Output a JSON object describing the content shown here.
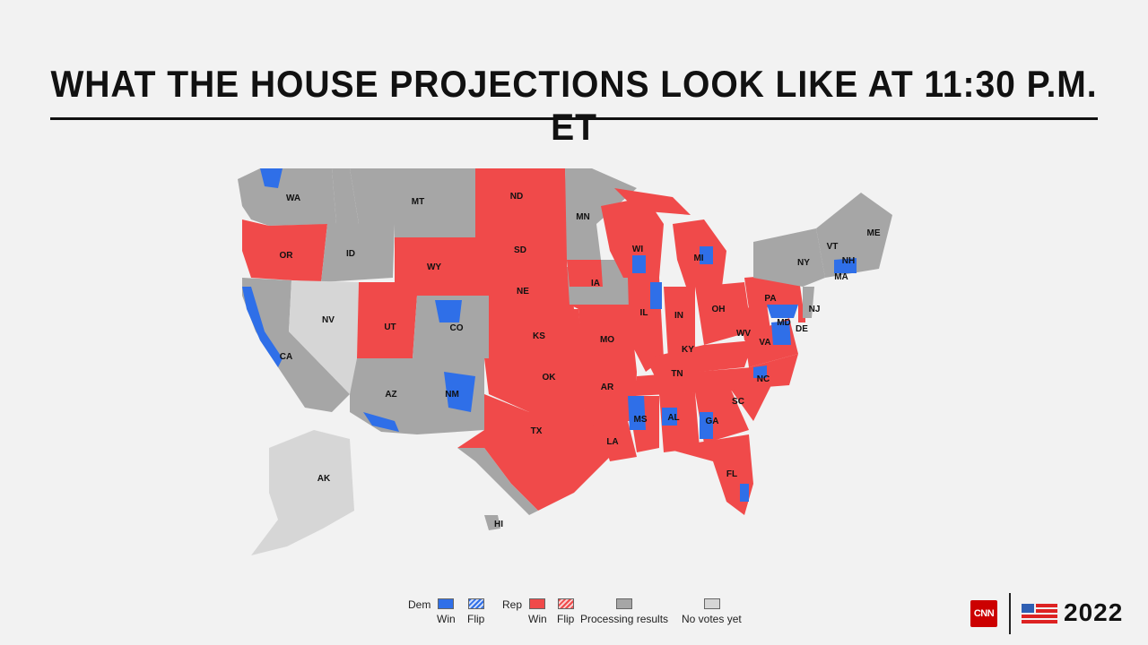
{
  "title": "WHAT THE HOUSE PROJECTIONS LOOK LIKE AT 11:30 P.M. ET",
  "colors": {
    "dem": "#2f6fe8",
    "rep": "#f04a4a",
    "processing": "#a6a6a6",
    "no_votes": "#d6d6d6"
  },
  "state_labels": [
    "WA",
    "MT",
    "ND",
    "MN",
    "ME",
    "OR",
    "ID",
    "WY",
    "SD",
    "WI",
    "MI",
    "VT",
    "NY",
    "NH",
    "MA",
    "IA",
    "NE",
    "PA",
    "NJ",
    "NV",
    "UT",
    "CO",
    "IL",
    "IN",
    "OH",
    "MD",
    "DE",
    "KS",
    "MO",
    "WV",
    "VA",
    "KY",
    "CA",
    "TN",
    "NC",
    "OK",
    "AR",
    "AZ",
    "NM",
    "SC",
    "MS",
    "AL",
    "GA",
    "TX",
    "LA",
    "FL",
    "AK",
    "HI"
  ],
  "legend": {
    "dem_label": "Dem",
    "rep_label": "Rep",
    "win": "Win",
    "flip": "Flip",
    "processing": "Processing results",
    "no_votes": "No votes yet"
  },
  "branding": {
    "network": "CNN",
    "year": "2022"
  }
}
